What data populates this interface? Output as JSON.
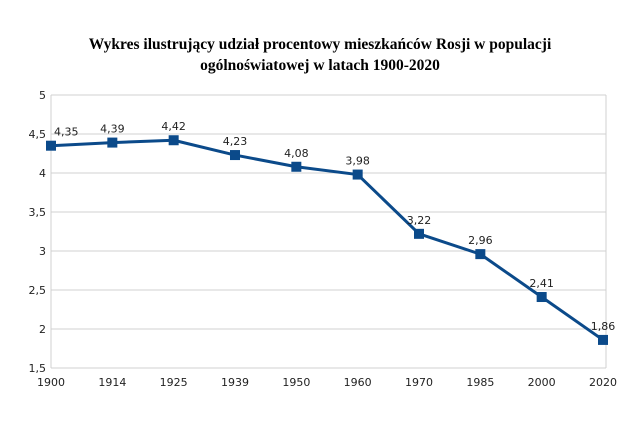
{
  "chart_data": {
    "type": "line",
    "title": "Wykres ilustrujący udział procentowy mieszkańców Rosji w populacji ogólnoświatowej w latach 1900-2020",
    "title_lines": [
      "Wykres ilustrujący udział procentowy mieszkańców Rosji w populacji",
      "ogólnoświatowej w latach 1900-2020"
    ],
    "categories": [
      "1900",
      "1914",
      "1925",
      "1939",
      "1950",
      "1960",
      "1970",
      "1985",
      "2000",
      "2020"
    ],
    "values": [
      4.35,
      4.39,
      4.42,
      4.23,
      4.08,
      3.98,
      3.22,
      2.96,
      2.41,
      1.86
    ],
    "data_labels": [
      "4,35",
      "4,39",
      "4,42",
      "4,23",
      "4,08",
      "3,98",
      "3,22",
      "2,96",
      "2,41",
      "1,86"
    ],
    "y_ticks": [
      1.5,
      2,
      2.5,
      3,
      3.5,
      4,
      4.5,
      5
    ],
    "y_tick_labels": [
      "1,5",
      "2",
      "2,5",
      "3",
      "3,5",
      "4",
      "4,5",
      "5"
    ],
    "ylim": [
      1.5,
      5
    ],
    "xlabel": "",
    "ylabel": "",
    "grid": true,
    "marker": "square",
    "colors": {
      "series": "#0b4a8a",
      "grid": "#d0d0d0"
    }
  }
}
